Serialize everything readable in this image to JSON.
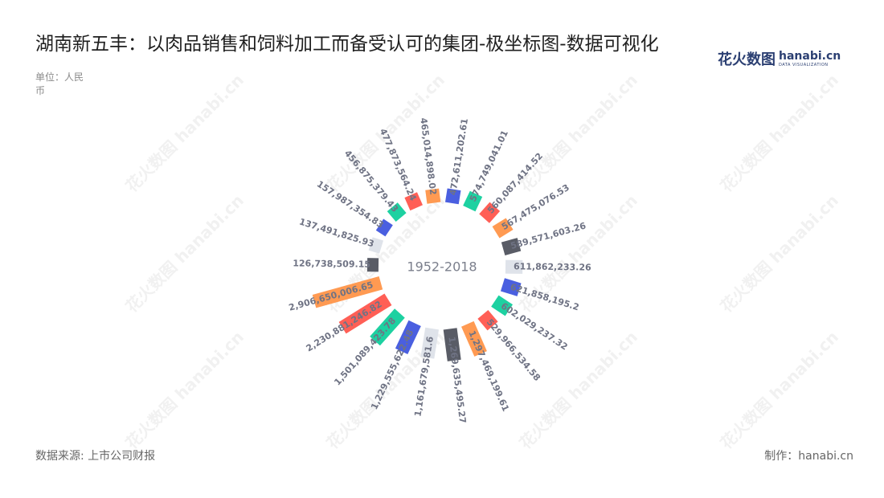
{
  "title": "湖南新五丰：以肉品销售和饲料加工而备受认可的集团-极坐标图-数据可视化",
  "unit": "单位：人民币",
  "center_label": "1952-2018",
  "source": "数据来源: 上市公司财报",
  "maker": "制作：hanabi.cn",
  "logo": {
    "cn": "花火数图",
    "en": "hanabi.cn",
    "sub": "DATA VISUALIZATION"
  },
  "watermark": "花火数图 hanabi.cn",
  "colors": [
    "#4a5fe0",
    "#1dd1a1",
    "#ff5f56",
    "#ff9a52",
    "#595c66",
    "#dfe3ea"
  ],
  "chart_data": {
    "type": "bar",
    "coordinate": "polar",
    "values": [
      472611202.61,
      574749041.01,
      560087414.52,
      567475076.53,
      589571603.26,
      611862233.26,
      621858195.2,
      602029237.32,
      529966534.58,
      1297469199.61,
      1269635495.27,
      1161679581.6,
      1229555622.48,
      1501089423.78,
      2230881246.82,
      2906650006.65,
      126738509.15,
      137491825.93,
      157987354.83,
      456875379.43,
      477873564.24,
      465014898.02
    ],
    "labels": [
      "472,611,202.61",
      "574,749,041.01",
      "560,087,414.52",
      "567,475,076.53",
      "589,571,603.26",
      "611,862,233.26",
      "621,858,195.2",
      "602,029,237.32",
      "529,966,534.58",
      "1,297,469,199.61",
      "1,269,635,495.27",
      "1,161,679,581.6",
      "1,229,555,622.48",
      "1,501,089,423.78",
      "2,230,881,246.82",
      "2,906,650,006.65",
      "126,738,509.15",
      "137,491,825.93",
      "157,987,354.83",
      "456,875,379.43",
      "477,873,564.24",
      "465,014,898.02"
    ]
  }
}
